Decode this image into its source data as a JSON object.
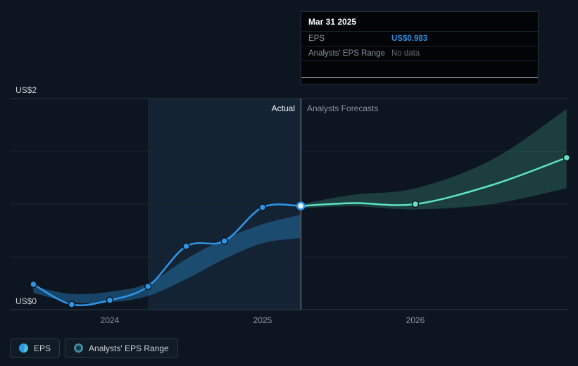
{
  "tooltip": {
    "date": "Mar 31 2025",
    "eps_label": "EPS",
    "eps_value": "US$0.983",
    "range_label": "Analysts' EPS Range",
    "range_value": "No data"
  },
  "labels": {
    "actual": "Actual",
    "forecasts": "Analysts Forecasts"
  },
  "legend": {
    "eps": "EPS",
    "range": "Analysts' EPS Range"
  },
  "colors": {
    "background": "#0d1620",
    "eps_line": "#2e96e8",
    "forecast_line": "#5fe3c1",
    "eps_value_text": "#2d8fe2",
    "history_band": "#2373ad",
    "forecast_band": "#2e6f63",
    "divider": "#49545f"
  },
  "chart_data": {
    "type": "line",
    "title": "EPS actual vs analysts forecasts",
    "y_axis": {
      "min": 0,
      "max": 2,
      "ticks": [
        {
          "value": 0,
          "label": "US$0"
        },
        {
          "value": 0.5
        },
        {
          "value": 1
        },
        {
          "value": 1.5
        },
        {
          "value": 2,
          "label": "US$2"
        }
      ]
    },
    "x_ticks": [
      {
        "value": 2024,
        "label": "2024"
      },
      {
        "value": 2025,
        "label": "2025"
      },
      {
        "value": 2026,
        "label": "2026"
      }
    ],
    "divider_x": 2025.25,
    "highlight_region": {
      "from": 2024.25,
      "to": 2025.25
    },
    "hover_point": {
      "x": 2025.25,
      "value": 0.983
    },
    "series": [
      {
        "id": "history-band",
        "name": "Analysts' EPS Range (history)",
        "type": "band",
        "color": "#2373ad",
        "opacity": 0.5,
        "points": [
          {
            "x": 2023.5,
            "hi": 0.22,
            "lo": 0.16
          },
          {
            "x": 2023.75,
            "hi": 0.15,
            "lo": 0.07
          },
          {
            "x": 2024.0,
            "hi": 0.17,
            "lo": 0.07
          },
          {
            "x": 2024.25,
            "hi": 0.25,
            "lo": 0.13
          },
          {
            "x": 2024.5,
            "hi": 0.48,
            "lo": 0.29
          },
          {
            "x": 2024.75,
            "hi": 0.67,
            "lo": 0.48
          },
          {
            "x": 2025.0,
            "hi": 0.81,
            "lo": 0.63
          },
          {
            "x": 2025.25,
            "hi": 0.9,
            "lo": 0.68
          }
        ]
      },
      {
        "id": "forecast-band",
        "name": "Analysts' EPS Range (forecast)",
        "type": "band",
        "color": "#2e6f63",
        "opacity": 0.45,
        "points": [
          {
            "x": 2025.25,
            "hi": 1.0,
            "lo": 0.96
          },
          {
            "x": 2025.6,
            "hi": 1.09,
            "lo": 0.98
          },
          {
            "x": 2026.0,
            "hi": 1.15,
            "lo": 0.95
          },
          {
            "x": 2026.5,
            "hi": 1.42,
            "lo": 1.0
          },
          {
            "x": 2026.99,
            "hi": 1.9,
            "lo": 1.15
          }
        ]
      },
      {
        "id": "eps-line",
        "name": "EPS",
        "type": "line",
        "color": "#2e96e8",
        "points": [
          [
            2023.5,
            0.24
          ],
          [
            2023.75,
            0.05
          ],
          [
            2024.0,
            0.09
          ],
          [
            2024.25,
            0.22
          ],
          [
            2024.5,
            0.6
          ],
          [
            2024.75,
            0.65
          ],
          [
            2025.0,
            0.97
          ],
          [
            2025.25,
            0.983
          ]
        ],
        "marker_indices": [
          0,
          1,
          2,
          3,
          4,
          5,
          6
        ]
      },
      {
        "id": "forecast-line",
        "name": "EPS (Analysts Forecast)",
        "type": "line",
        "color": "#5fe3c1",
        "points": [
          [
            2025.25,
            0.983
          ],
          [
            2025.6,
            1.01
          ],
          [
            2026.0,
            1.0
          ],
          [
            2026.5,
            1.18
          ],
          [
            2026.99,
            1.44
          ]
        ],
        "marker_indices": [
          2,
          4
        ]
      }
    ]
  }
}
